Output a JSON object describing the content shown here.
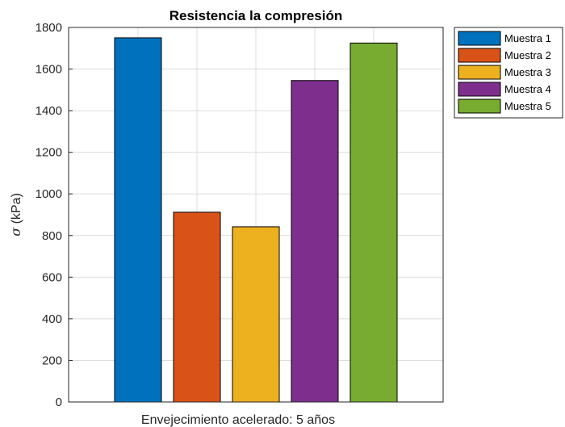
{
  "chart_data": {
    "type": "bar",
    "title": "Resistencia la compresión",
    "xlabel": "Envejecimiento acelerado: 5 años",
    "ylabel_symbol": "σ",
    "ylabel_unit": "(kPa)",
    "ylim": [
      0,
      1800
    ],
    "yticks": [
      "0",
      "200",
      "400",
      "600",
      "800",
      "1000",
      "1200",
      "1400",
      "1600",
      "1800"
    ],
    "grid": true,
    "legend_position": "outside-top-right",
    "series": [
      {
        "name": "Muestra 1",
        "value": 1750,
        "color": "#0072BD"
      },
      {
        "name": "Muestra 2",
        "value": 912,
        "color": "#D95319"
      },
      {
        "name": "Muestra 3",
        "value": 842,
        "color": "#EDB120"
      },
      {
        "name": "Muestra 4",
        "value": 1545,
        "color": "#7E2F8E"
      },
      {
        "name": "Muestra 5",
        "value": 1725,
        "color": "#77AC30"
      }
    ]
  }
}
